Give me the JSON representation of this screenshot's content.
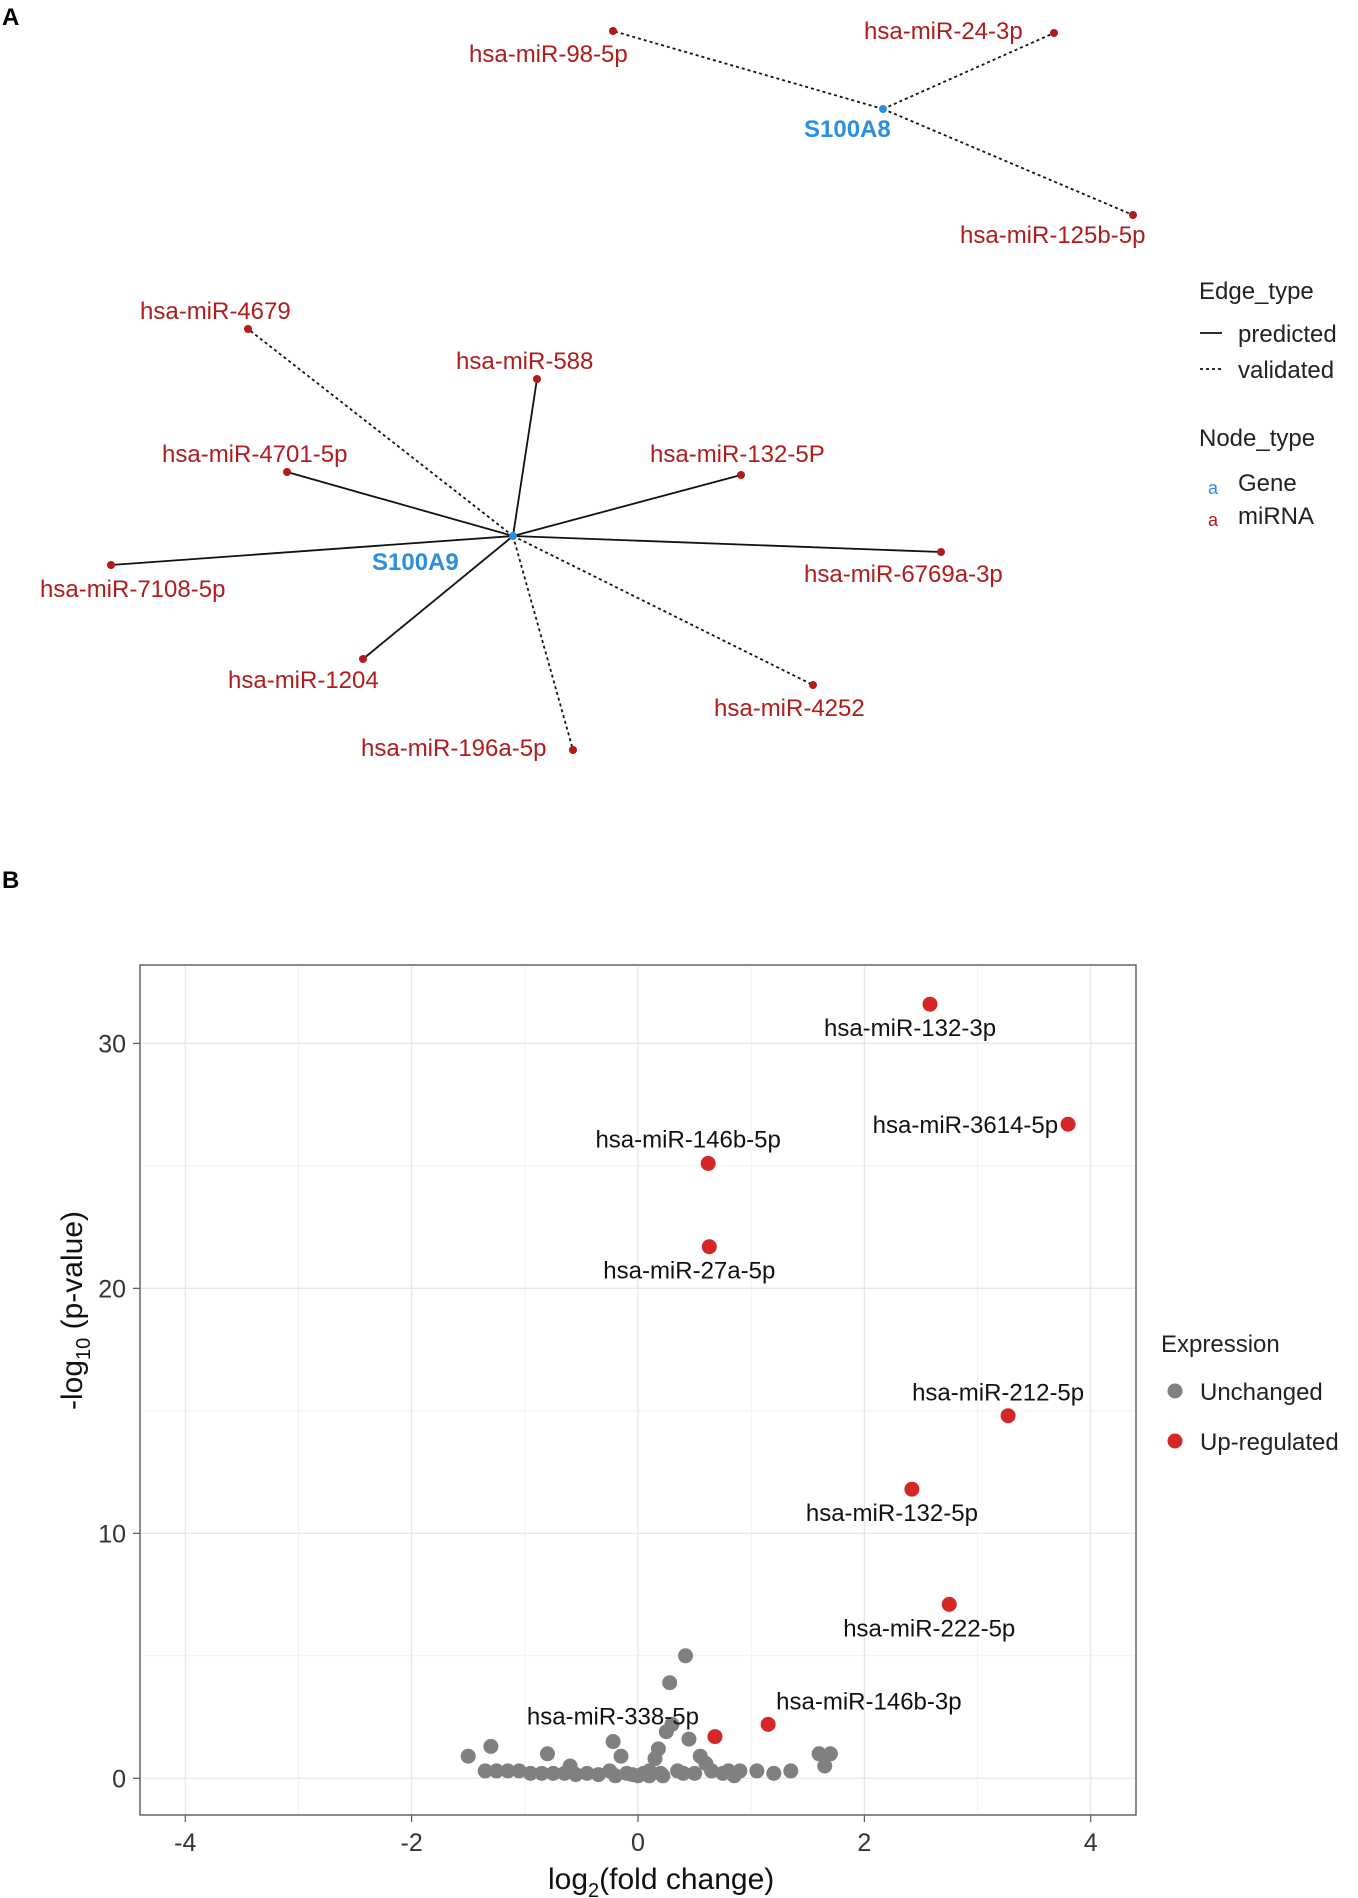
{
  "panels": {
    "a_label": "A",
    "b_label": "B"
  },
  "network": {
    "genes": [
      {
        "id": "S100A8",
        "label": "S100A8"
      },
      {
        "id": "S100A9",
        "label": "S100A9"
      }
    ],
    "mirnas": [
      {
        "label": "hsa-miR-98-5p",
        "gene": "S100A8",
        "edge": "validated"
      },
      {
        "label": "hsa-miR-24-3p",
        "gene": "S100A8",
        "edge": "validated"
      },
      {
        "label": "hsa-miR-125b-5p",
        "gene": "S100A8",
        "edge": "validated"
      },
      {
        "label": "hsa-miR-4679",
        "gene": "S100A9",
        "edge": "validated"
      },
      {
        "label": "hsa-miR-588",
        "gene": "S100A9",
        "edge": "predicted"
      },
      {
        "label": "hsa-miR-4701-5p",
        "gene": "S100A9",
        "edge": "predicted"
      },
      {
        "label": "hsa-miR-132-5P",
        "gene": "S100A9",
        "edge": "predicted"
      },
      {
        "label": "hsa-miR-7108-5p",
        "gene": "S100A9",
        "edge": "predicted"
      },
      {
        "label": "hsa-miR-6769a-3p",
        "gene": "S100A9",
        "edge": "predicted"
      },
      {
        "label": "hsa-miR-1204",
        "gene": "S100A9",
        "edge": "predicted"
      },
      {
        "label": "hsa-miR-4252",
        "gene": "S100A9",
        "edge": "validated"
      },
      {
        "label": "hsa-miR-196a-5p",
        "gene": "S100A9",
        "edge": "validated"
      }
    ],
    "legend": {
      "edge_title": "Edge_type",
      "edge_items": [
        "predicted",
        "validated"
      ],
      "node_title": "Node_type",
      "node_items": [
        "Gene",
        "miRNA"
      ],
      "node_key_glyph": "a"
    },
    "colors": {
      "gene": "#2b8fe0",
      "mirna": "#b01c1c"
    }
  },
  "chart_data": {
    "type": "scatter",
    "title": "",
    "xlabel": "log2(fold change)",
    "xlabel_base": "log",
    "xlabel_sub": "2",
    "xlabel_rest": "(fold change)",
    "ylabel": "-log10 (p-value)",
    "ylabel_base": "-log",
    "ylabel_sub": "10",
    "ylabel_rest": " (p-value)",
    "xlim": [
      -4.4,
      4.4
    ],
    "ylim": [
      -1.5,
      33.2
    ],
    "xticks": [
      -4,
      -2,
      0,
      2,
      4
    ],
    "yticks": [
      0,
      10,
      20,
      30
    ],
    "grid": true,
    "legend_title": "Expression",
    "legend_position": "right",
    "series": [
      {
        "name": "Unchanged",
        "color": "#808080",
        "points": [
          [
            -1.5,
            0.9
          ],
          [
            -1.3,
            1.3
          ],
          [
            -1.35,
            0.3
          ],
          [
            -1.25,
            0.3
          ],
          [
            -1.15,
            0.3
          ],
          [
            -1.05,
            0.3
          ],
          [
            -0.95,
            0.2
          ],
          [
            -0.85,
            0.2
          ],
          [
            -0.8,
            1.0
          ],
          [
            -0.75,
            0.2
          ],
          [
            -0.65,
            0.2
          ],
          [
            -0.55,
            0.15
          ],
          [
            -0.45,
            0.2
          ],
          [
            -0.35,
            0.15
          ],
          [
            -0.25,
            0.3
          ],
          [
            -0.22,
            1.5
          ],
          [
            -0.15,
            0.9
          ],
          [
            -0.1,
            0.2
          ],
          [
            -0.05,
            0.15
          ],
          [
            0.0,
            0.1
          ],
          [
            0.05,
            0.2
          ],
          [
            0.1,
            0.3
          ],
          [
            0.15,
            0.8
          ],
          [
            0.18,
            1.2
          ],
          [
            0.2,
            0.2
          ],
          [
            0.25,
            1.9
          ],
          [
            0.28,
            3.9
          ],
          [
            0.3,
            2.2
          ],
          [
            0.35,
            0.3
          ],
          [
            0.4,
            0.2
          ],
          [
            0.42,
            5.0
          ],
          [
            0.45,
            1.6
          ],
          [
            0.5,
            0.2
          ],
          [
            0.55,
            0.9
          ],
          [
            0.6,
            0.6
          ],
          [
            0.65,
            0.3
          ],
          [
            0.75,
            0.2
          ],
          [
            0.8,
            0.3
          ],
          [
            0.85,
            0.1
          ],
          [
            0.9,
            0.3
          ],
          [
            -0.6,
            0.5
          ],
          [
            -0.2,
            0.1
          ],
          [
            0.1,
            0.1
          ],
          [
            0.22,
            0.1
          ],
          [
            1.05,
            0.3
          ],
          [
            1.2,
            0.2
          ],
          [
            1.35,
            0.3
          ],
          [
            1.6,
            1.0
          ],
          [
            1.65,
            0.5
          ],
          [
            1.7,
            1.0
          ]
        ]
      },
      {
        "name": "Up-regulated",
        "color": "#d62728",
        "points": [
          {
            "x": 2.58,
            "y": 31.6,
            "label": "hsa-miR-132-3p"
          },
          {
            "x": 3.8,
            "y": 26.7,
            "label": "hsa-miR-3614-5p"
          },
          {
            "x": 0.62,
            "y": 25.1,
            "label": "hsa-miR-146b-5p"
          },
          {
            "x": 0.63,
            "y": 21.7,
            "label": "hsa-miR-27a-5p"
          },
          {
            "x": 3.27,
            "y": 14.8,
            "label": "hsa-miR-212-5p"
          },
          {
            "x": 2.42,
            "y": 11.8,
            "label": "hsa-miR-132-5p"
          },
          {
            "x": 2.75,
            "y": 7.1,
            "label": "hsa-miR-222-5p"
          },
          {
            "x": 0.68,
            "y": 1.7,
            "label": "hsa-miR-338-5p"
          },
          {
            "x": 1.15,
            "y": 2.2,
            "label": "hsa-miR-146b-3p"
          }
        ]
      }
    ]
  }
}
